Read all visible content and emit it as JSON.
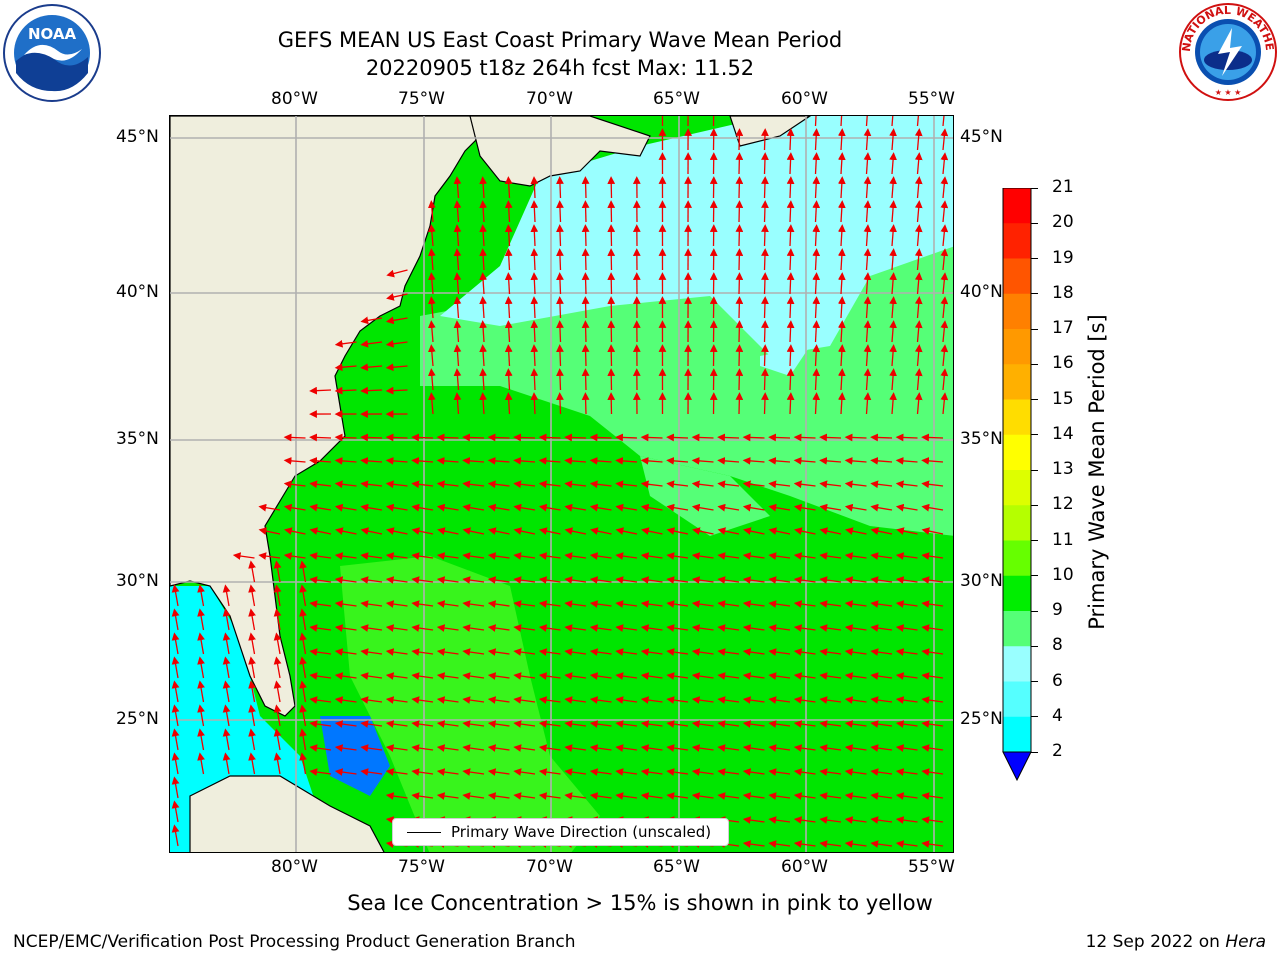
{
  "header": {
    "title_line1": "GEFS MEAN US East Coast Primary Wave Mean Period",
    "title_line2": "20220905 t18z 264h fcst   Max: 11.52"
  },
  "logos": {
    "left": "NOAA",
    "right": "NATIONAL WEATHER SERVICE"
  },
  "axes": {
    "lon_labels": [
      "80°W",
      "75°W",
      "70°W",
      "65°W",
      "60°W",
      "55°W"
    ],
    "lat_labels": [
      "45°N",
      "40°N",
      "35°N",
      "30°N",
      "25°N"
    ]
  },
  "legend": {
    "label": "Primary Wave Direction (unscaled)"
  },
  "colorbar": {
    "title": "Primary Wave Mean Period [s]",
    "ticks": [
      "21",
      "20",
      "19",
      "18",
      "17",
      "16",
      "15",
      "14",
      "13",
      "12",
      "11",
      "10",
      "9",
      "8",
      "6",
      "4",
      "2"
    ],
    "colors": [
      "#ff0000",
      "#ff2200",
      "#ff5500",
      "#ff8000",
      "#ff9900",
      "#ffb000",
      "#ffdd00",
      "#ffff00",
      "#ddff00",
      "#b5ff00",
      "#66ff00",
      "#00ee00",
      "#55ff77",
      "#99ffff",
      "#55ffff",
      "#00ffff",
      "#0077ff"
    ],
    "extend_color": "#0000ff"
  },
  "note": "Sea Ice Concentration > 15% is shown in pink to yellow",
  "footer": {
    "left": "NCEP/EMC/Verification Post Processing Product Generation Branch",
    "right_date": "12 Sep 2022 on ",
    "right_host": "Hera"
  }
}
